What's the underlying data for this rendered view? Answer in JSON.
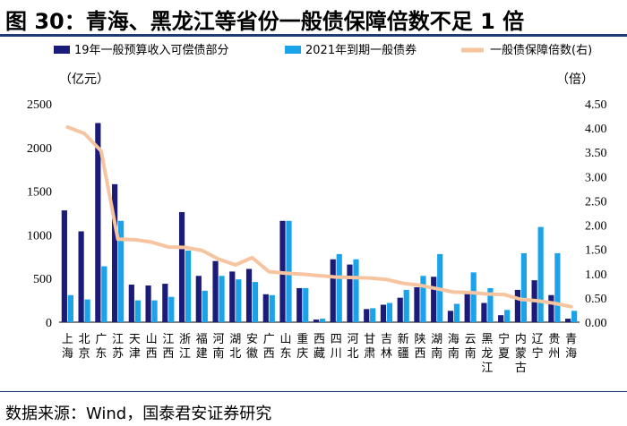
{
  "header": {
    "title": "图 30：青海、黑龙江等省份一般债保障倍数不足 1 倍"
  },
  "footer": {
    "source": "数据来源：Wind，国泰君安证券研究"
  },
  "chart_data": {
    "type": "bar",
    "title": "图 30：青海、黑龙江等省份一般债保障倍数不足 1 倍",
    "left_unit": "（亿元）",
    "right_unit": "（倍）",
    "ylim": [
      0,
      2500
    ],
    "y_ticks": [
      "0",
      "500",
      "1000",
      "1500",
      "2000",
      "2500"
    ],
    "y2lim": [
      0,
      4.5
    ],
    "y2_ticks": [
      "0.00",
      "0.50",
      "1.00",
      "1.50",
      "2.00",
      "2.50",
      "3.00",
      "3.50",
      "4.00",
      "4.50"
    ],
    "grid": false,
    "legend_position": "top",
    "colors": {
      "series1": "#1b1b7a",
      "series2": "#1aa3e8",
      "series3": "#f7c4a0"
    },
    "categories": [
      "上海",
      "北京",
      "广东",
      "江苏",
      "天津",
      "山西",
      "江西",
      "浙江",
      "福建",
      "河南",
      "湖北",
      "安徽",
      "广西",
      "山东",
      "重庆",
      "西藏",
      "四川",
      "河北",
      "甘肃",
      "吉林",
      "新疆",
      "陕西",
      "湖南",
      "海南",
      "云南",
      "黑龙江",
      "宁夏",
      "内蒙古",
      "辽宁",
      "贵州",
      "青海"
    ],
    "series": [
      {
        "name": "19年一般预算收入可偿债部分",
        "type": "bar",
        "axis": "left",
        "values": [
          1280,
          1040,
          2280,
          1580,
          430,
          420,
          440,
          1260,
          530,
          700,
          580,
          610,
          320,
          1160,
          390,
          30,
          720,
          660,
          150,
          200,
          280,
          400,
          520,
          130,
          340,
          220,
          80,
          370,
          480,
          310,
          40
        ]
      },
      {
        "name": "2021年到期一般债券",
        "type": "bar",
        "axis": "left",
        "values": [
          310,
          260,
          640,
          1160,
          250,
          250,
          290,
          820,
          360,
          530,
          490,
          460,
          310,
          1160,
          390,
          40,
          780,
          720,
          160,
          220,
          370,
          530,
          780,
          210,
          570,
          390,
          140,
          790,
          1090,
          790,
          130
        ]
      },
      {
        "name": "一般债保障倍数(右)",
        "type": "line",
        "axis": "right",
        "values": [
          4.02,
          3.89,
          3.53,
          1.71,
          1.7,
          1.65,
          1.55,
          1.54,
          1.48,
          1.3,
          1.18,
          1.33,
          1.04,
          1.01,
          0.99,
          0.96,
          0.93,
          0.92,
          0.91,
          0.88,
          0.8,
          0.76,
          0.69,
          0.62,
          0.61,
          0.58,
          0.57,
          0.47,
          0.44,
          0.39,
          0.32
        ]
      }
    ]
  }
}
